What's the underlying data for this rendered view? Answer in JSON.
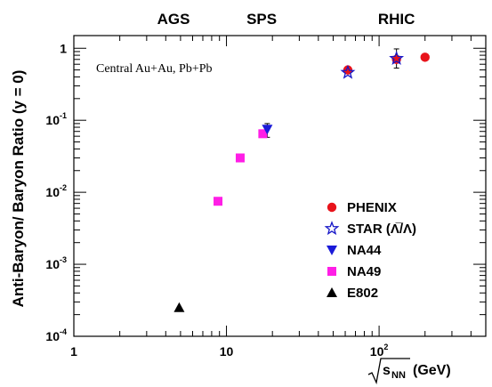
{
  "chart_data": {
    "type": "scatter",
    "title": "",
    "xlabel": "(GeV)",
    "xlabel_symbol": "s",
    "xlabel_subscript": "NN",
    "ylabel": "Anti-Baryon/ Baryon Ratio (y = 0)",
    "xscale": "log",
    "yscale": "log",
    "xlim": [
      1,
      500
    ],
    "ylim": [
      0.0001,
      1.5
    ],
    "x_ticks": [
      {
        "value": 1,
        "label": "1",
        "sup": ""
      },
      {
        "value": 10,
        "label": "10",
        "sup": ""
      },
      {
        "value": 100,
        "label": "10",
        "sup": "2"
      }
    ],
    "y_ticks": [
      {
        "value": 0.0001,
        "label": "10",
        "sup": "-4"
      },
      {
        "value": 0.001,
        "label": "10",
        "sup": "-3"
      },
      {
        "value": 0.01,
        "label": "10",
        "sup": "-2"
      },
      {
        "value": 0.1,
        "label": "10",
        "sup": "-1"
      },
      {
        "value": 1,
        "label": "1",
        "sup": ""
      }
    ],
    "era_labels": [
      {
        "text": "AGS",
        "x": 4.5
      },
      {
        "text": "SPS",
        "x": 17
      },
      {
        "text": "RHIC",
        "x": 130
      }
    ],
    "annotation": "Central Au+Au, Pb+Pb",
    "legend_position": "lower-right",
    "grid": false,
    "series": [
      {
        "name": "PHENIX",
        "marker": "circle",
        "color": "#e8131b",
        "points": [
          {
            "x": 62.4,
            "y": 0.5
          },
          {
            "x": 130,
            "y": 0.7
          },
          {
            "x": 200,
            "y": 0.75
          }
        ]
      },
      {
        "name": "STAR (Λ̅/Λ)",
        "marker": "star-open",
        "color": "#1616c8",
        "points": [
          {
            "x": 62.4,
            "y": 0.46
          },
          {
            "x": 130,
            "y": 0.72,
            "yerr_low": 0.53,
            "yerr_high": 0.98
          }
        ]
      },
      {
        "name": "NA44",
        "marker": "triangle-down",
        "color": "#1a1ad8",
        "points": [
          {
            "x": 18.5,
            "y": 0.075,
            "yerr_low": 0.058,
            "yerr_high": 0.09
          }
        ]
      },
      {
        "name": "NA49",
        "marker": "square",
        "color": "#ff1ee6",
        "points": [
          {
            "x": 8.8,
            "y": 0.0075
          },
          {
            "x": 12.3,
            "y": 0.03
          },
          {
            "x": 17.3,
            "y": 0.065
          }
        ]
      },
      {
        "name": "E802",
        "marker": "triangle-up",
        "color": "#000000",
        "points": [
          {
            "x": 4.9,
            "y": 0.00025
          }
        ]
      }
    ]
  }
}
